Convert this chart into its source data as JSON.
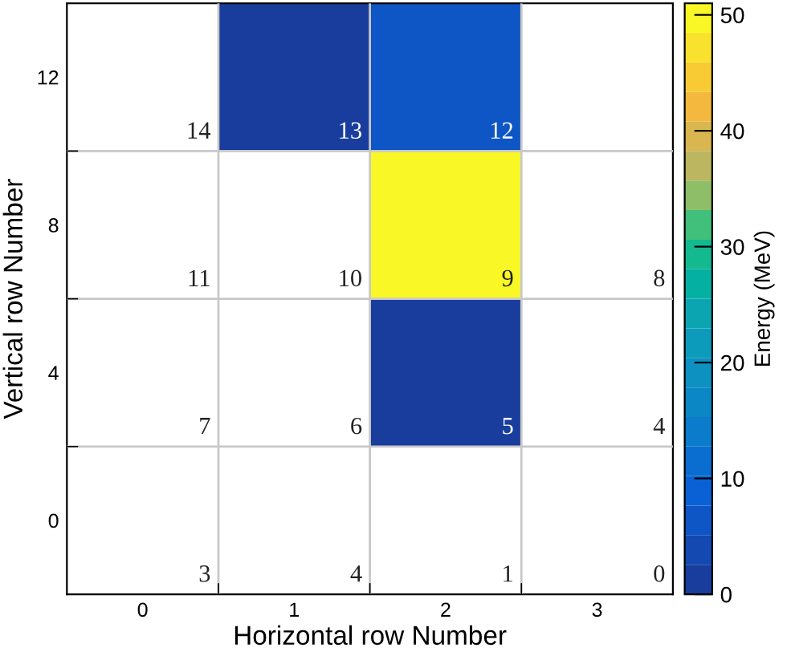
{
  "chart_data": {
    "type": "heatmap",
    "xlabel": "Horizontal row Number",
    "ylabel": "Vertical row Number",
    "clabel": "Energy (MeV)",
    "categories": [
      "0",
      "1",
      "2",
      "3"
    ],
    "y_categories": [
      "12",
      "8",
      "4",
      "0"
    ],
    "cells": [
      [
        null,
        1,
        6,
        null
      ],
      [
        null,
        null,
        50,
        null
      ],
      [
        null,
        null,
        1,
        null
      ],
      [
        null,
        null,
        null,
        null
      ]
    ],
    "annotations": [
      "3",
      "7",
      "11",
      "14",
      "4",
      "6",
      "10",
      "13",
      "1",
      "5",
      "9",
      "12",
      "0",
      "4",
      "8"
    ],
    "clim": [
      0,
      51
    ],
    "cticks": [
      0,
      10,
      20,
      30,
      40,
      50
    ],
    "grid": true
  }
}
